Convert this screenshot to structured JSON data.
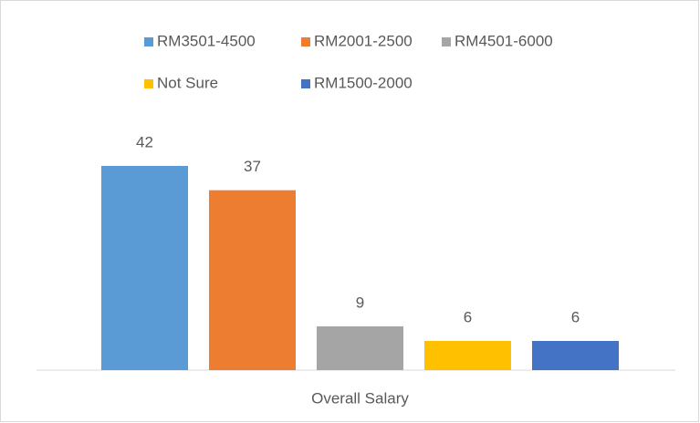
{
  "chart_data": {
    "type": "bar",
    "categories": [
      "Overall Salary"
    ],
    "series": [
      {
        "name": "RM3501-4500",
        "color": "#5b9bd5",
        "values": [
          42
        ]
      },
      {
        "name": "RM2001-2500",
        "color": "#ed7d31",
        "values": [
          37
        ]
      },
      {
        "name": "RM4501-6000",
        "color": "#a5a5a5",
        "values": [
          9
        ]
      },
      {
        "name": "Not Sure",
        "color": "#ffc000",
        "values": [
          6
        ]
      },
      {
        "name": "RM1500-2000",
        "color": "#4472c4",
        "values": [
          6
        ]
      }
    ],
    "legend": "top"
  }
}
